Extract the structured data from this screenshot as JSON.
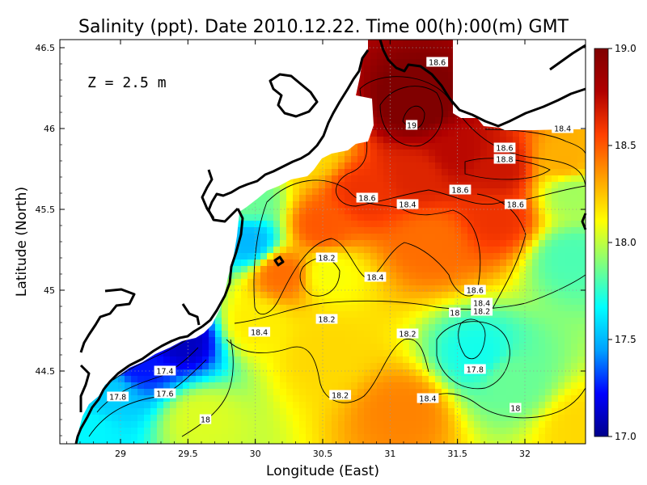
{
  "chart_data": {
    "type": "heatmap",
    "title": "Salinity (ppt). Date 2010.12.22. Time 00(h):00(m) GMT",
    "annotation": "Z = 2.5 m",
    "xlabel": "Longitude (East)",
    "ylabel": "Latitude (North)",
    "xlim": [
      28.55,
      32.45
    ],
    "ylim": [
      44.05,
      46.55
    ],
    "x_ticks": [
      "29",
      "29.5",
      "30",
      "30.5",
      "31",
      "31.5",
      "32"
    ],
    "x_tick_values": [
      29,
      29.5,
      30,
      30.5,
      31,
      31.5,
      32
    ],
    "y_ticks": [
      "44.5",
      "45",
      "45.5",
      "46",
      "46.5"
    ],
    "y_tick_values": [
      44.5,
      45,
      45.5,
      46,
      46.5
    ],
    "grid": true,
    "colorbar": {
      "range": [
        17.0,
        19.0
      ],
      "ticks": [
        "17.0",
        "17.5",
        "18.0",
        "18.5",
        "19.0"
      ],
      "tick_values": [
        17.0,
        17.5,
        18.0,
        18.5,
        19.0
      ],
      "colors": [
        "#00008b",
        "#0000ff",
        "#00a0ff",
        "#00ffff",
        "#7fff7f",
        "#ffff00",
        "#ffa000",
        "#ff4000",
        "#b00000",
        "#800000"
      ]
    },
    "field_centers": [
      {
        "lon": 31.2,
        "lat": 46.15,
        "value": 19.05
      },
      {
        "lon": 31.5,
        "lat": 45.85,
        "value": 18.75
      },
      {
        "lon": 31.8,
        "lat": 45.75,
        "value": 18.7
      },
      {
        "lon": 31.2,
        "lat": 45.7,
        "value": 18.65
      },
      {
        "lon": 30.8,
        "lat": 45.6,
        "value": 18.6
      },
      {
        "lon": 30.5,
        "lat": 45.4,
        "value": 18.5
      },
      {
        "lon": 30.2,
        "lat": 45.1,
        "value": 18.45
      },
      {
        "lon": 31.8,
        "lat": 45.45,
        "value": 18.6
      },
      {
        "lon": 31.3,
        "lat": 45.3,
        "value": 18.45
      },
      {
        "lon": 30.55,
        "lat": 45.1,
        "value": 18.1
      },
      {
        "lon": 32.3,
        "lat": 45.8,
        "value": 18.3
      },
      {
        "lon": 32.35,
        "lat": 45.6,
        "value": 17.95
      },
      {
        "lon": 32.35,
        "lat": 45.2,
        "value": 17.8
      },
      {
        "lon": 31.65,
        "lat": 44.6,
        "value": 17.7
      },
      {
        "lon": 31.9,
        "lat": 44.45,
        "value": 17.85
      },
      {
        "lon": 31.1,
        "lat": 44.25,
        "value": 18.4
      },
      {
        "lon": 30.5,
        "lat": 44.6,
        "value": 18.2
      },
      {
        "lon": 30.0,
        "lat": 44.8,
        "value": 18.15
      },
      {
        "lon": 29.45,
        "lat": 44.7,
        "value": 17.1
      },
      {
        "lon": 29.15,
        "lat": 44.55,
        "value": 17.25
      },
      {
        "lon": 28.9,
        "lat": 44.35,
        "value": 17.55
      },
      {
        "lon": 28.75,
        "lat": 44.15,
        "value": 17.65
      },
      {
        "lon": 29.6,
        "lat": 44.2,
        "value": 18.05
      },
      {
        "lon": 29.95,
        "lat": 45.3,
        "value": 17.5
      },
      {
        "lon": 29.95,
        "lat": 45.55,
        "value": 17.85
      },
      {
        "lon": 30.4,
        "lat": 45.85,
        "value": 18.2
      },
      {
        "lon": 32.45,
        "lat": 44.15,
        "value": 18.2
      }
    ],
    "contour_labels": [
      {
        "text": "18.6",
        "lon": 31.35,
        "lat": 46.41
      },
      {
        "text": "19",
        "lon": 31.16,
        "lat": 46.02
      },
      {
        "text": "18.4",
        "lon": 32.28,
        "lat": 46.0
      },
      {
        "text": "18.6",
        "lon": 31.85,
        "lat": 45.88
      },
      {
        "text": "18.8",
        "lon": 31.85,
        "lat": 45.81
      },
      {
        "text": "18.6",
        "lon": 31.52,
        "lat": 45.62
      },
      {
        "text": "18.6",
        "lon": 30.83,
        "lat": 45.57
      },
      {
        "text": "18.4",
        "lon": 31.13,
        "lat": 45.53
      },
      {
        "text": "18.6",
        "lon": 31.93,
        "lat": 45.53
      },
      {
        "text": "18.2",
        "lon": 30.53,
        "lat": 45.2
      },
      {
        "text": "18.4",
        "lon": 30.89,
        "lat": 45.08
      },
      {
        "text": "18.6",
        "lon": 31.63,
        "lat": 45.0
      },
      {
        "text": "18.4",
        "lon": 31.68,
        "lat": 44.92
      },
      {
        "text": "18.2",
        "lon": 31.68,
        "lat": 44.87
      },
      {
        "text": "18",
        "lon": 31.48,
        "lat": 44.86
      },
      {
        "text": "18.2",
        "lon": 30.53,
        "lat": 44.82
      },
      {
        "text": "18.4",
        "lon": 30.03,
        "lat": 44.74
      },
      {
        "text": "18.2",
        "lon": 31.13,
        "lat": 44.73
      },
      {
        "text": "17.8",
        "lon": 31.63,
        "lat": 44.51
      },
      {
        "text": "17.4",
        "lon": 29.33,
        "lat": 44.5
      },
      {
        "text": "17.6",
        "lon": 29.33,
        "lat": 44.36
      },
      {
        "text": "17.8",
        "lon": 28.98,
        "lat": 44.34
      },
      {
        "text": "18.2",
        "lon": 30.63,
        "lat": 44.35
      },
      {
        "text": "18.4",
        "lon": 31.28,
        "lat": 44.33
      },
      {
        "text": "18",
        "lon": 31.93,
        "lat": 44.27
      },
      {
        "text": "18",
        "lon": 29.63,
        "lat": 44.2
      }
    ],
    "land_color": "#ffffff",
    "coastline_color": "#000000"
  }
}
